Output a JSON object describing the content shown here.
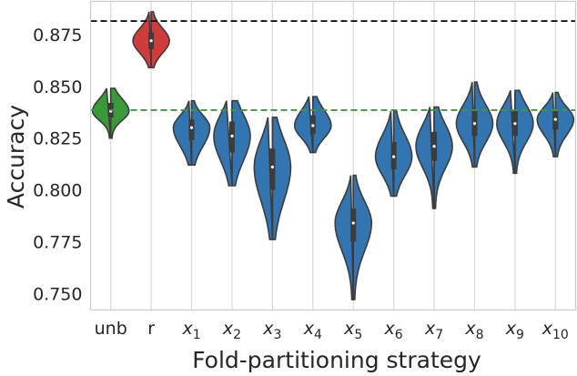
{
  "chart_data": {
    "type": "violin",
    "xlabel": "Fold-partitioning strategy",
    "ylabel": "Accuracy",
    "ylim": [
      0.742,
      0.891
    ],
    "yticks": [
      "0.750",
      "0.775",
      "0.800",
      "0.825",
      "0.850",
      "0.875"
    ],
    "grid": "vertical",
    "categories": [
      {
        "label": "unb",
        "sub": ""
      },
      {
        "label": "r",
        "sub": ""
      },
      {
        "label": "x",
        "sub": "1"
      },
      {
        "label": "x",
        "sub": "2"
      },
      {
        "label": "x",
        "sub": "3"
      },
      {
        "label": "x",
        "sub": "4"
      },
      {
        "label": "x",
        "sub": "5"
      },
      {
        "label": "x",
        "sub": "6"
      },
      {
        "label": "x",
        "sub": "7"
      },
      {
        "label": "x",
        "sub": "8"
      },
      {
        "label": "x",
        "sub": "9"
      },
      {
        "label": "x",
        "sub": "10"
      }
    ],
    "distributions": [
      {
        "min": 0.825,
        "q1": 0.835,
        "median": 0.838,
        "q3": 0.842,
        "max": 0.849,
        "color": "#3a9a3a"
      },
      {
        "min": 0.859,
        "q1": 0.868,
        "median": 0.872,
        "q3": 0.876,
        "max": 0.886,
        "color": "#d03c3c"
      },
      {
        "min": 0.812,
        "q1": 0.824,
        "median": 0.83,
        "q3": 0.834,
        "max": 0.843,
        "color": "#3275b0"
      },
      {
        "min": 0.802,
        "q1": 0.818,
        "median": 0.826,
        "q3": 0.833,
        "max": 0.843,
        "color": "#3275b0"
      },
      {
        "min": 0.776,
        "q1": 0.8,
        "median": 0.811,
        "q3": 0.82,
        "max": 0.835,
        "color": "#3275b0"
      },
      {
        "min": 0.818,
        "q1": 0.827,
        "median": 0.831,
        "q3": 0.836,
        "max": 0.845,
        "color": "#3275b0"
      },
      {
        "min": 0.747,
        "q1": 0.775,
        "median": 0.784,
        "q3": 0.791,
        "max": 0.807,
        "color": "#3275b0"
      },
      {
        "min": 0.797,
        "q1": 0.81,
        "median": 0.816,
        "q3": 0.823,
        "max": 0.838,
        "color": "#3275b0"
      },
      {
        "min": 0.791,
        "q1": 0.814,
        "median": 0.821,
        "q3": 0.828,
        "max": 0.84,
        "color": "#3275b0"
      },
      {
        "min": 0.811,
        "q1": 0.826,
        "median": 0.832,
        "q3": 0.838,
        "max": 0.852,
        "color": "#3275b0"
      },
      {
        "min": 0.808,
        "q1": 0.826,
        "median": 0.832,
        "q3": 0.838,
        "max": 0.848,
        "color": "#3275b0"
      },
      {
        "min": 0.816,
        "q1": 0.829,
        "median": 0.834,
        "q3": 0.838,
        "max": 0.847,
        "color": "#3275b0"
      }
    ],
    "reference_lines": [
      {
        "value": 0.8815,
        "color": "#000000",
        "style": "dashed"
      },
      {
        "value": 0.8385,
        "color": "#3a9a3a",
        "style": "dashed"
      }
    ]
  }
}
